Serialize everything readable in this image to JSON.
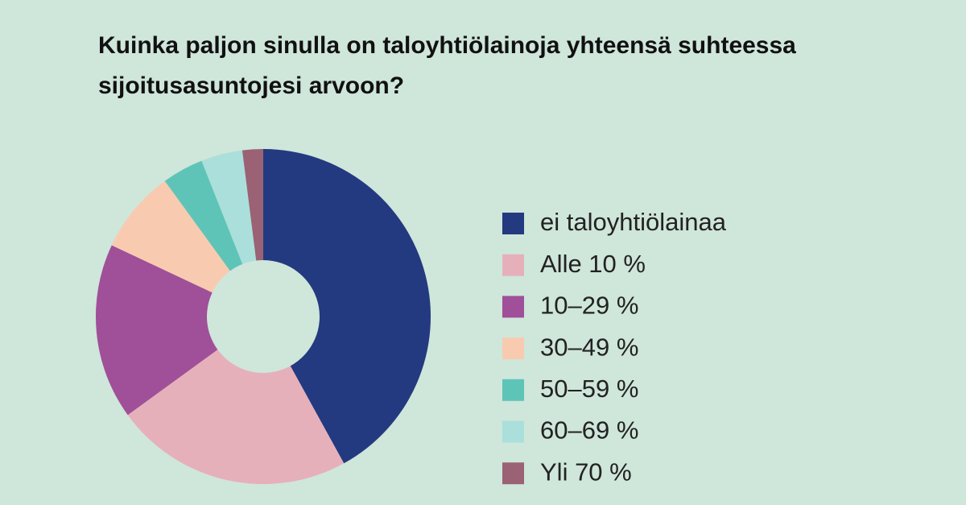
{
  "chart_data": {
    "type": "donut",
    "title": "Kuinka paljon sinulla on taloyhtiölainoja yhteensä suhteessa sijoitusasuntojesi arvoon?",
    "categories": [
      "ei taloyhtiölainaa",
      "Alle 10 %",
      "10–29 %",
      "30–49 %",
      "50–59 %",
      "60–69 %",
      "Yli 70 %"
    ],
    "values": [
      42,
      23,
      17,
      8,
      4,
      4,
      2
    ],
    "colors": [
      "#233a80",
      "#e6b0bb",
      "#9f5098",
      "#f8cbb0",
      "#5fc4b8",
      "#abdfdb",
      "#9a6274"
    ],
    "legend": "right"
  }
}
